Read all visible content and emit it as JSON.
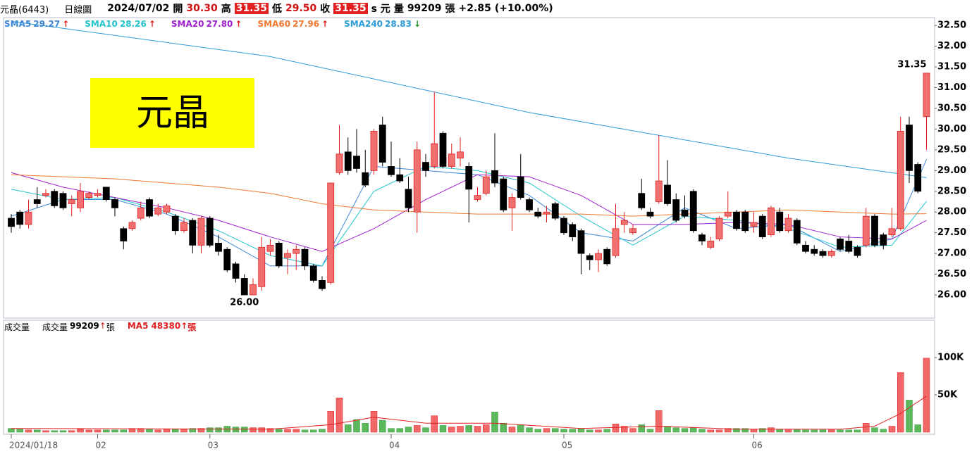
{
  "header": {
    "name": "元晶(6443)",
    "period": "日線圖",
    "date": "2024/07/02",
    "open_label": "開",
    "open": "30.30",
    "high_label": "高",
    "high": "31.35",
    "low_label": "低",
    "low": "29.50",
    "close_label": "收",
    "close": "31.35",
    "unit": "s 元",
    "volume_label": "量",
    "volume": "99209",
    "volume_unit": "張",
    "change": "+2.85",
    "change_pct": "(+10.00%)"
  },
  "banner": "元晶",
  "chart_data": [
    {
      "type": "candlestick",
      "up_color": "#f07070",
      "up_edge": "#e02020",
      "down_color": "#000000",
      "ylim": [
        25.44,
        32.69
      ],
      "yticks": [
        {
          "value": 26,
          "label": "26.00"
        },
        {
          "value": 26.5,
          "label": "26.50"
        },
        {
          "value": 27,
          "label": "27.00"
        },
        {
          "value": 27.5,
          "label": "27.50"
        },
        {
          "value": 28,
          "label": "28.00"
        },
        {
          "value": 28.5,
          "label": "28.50"
        },
        {
          "value": 29,
          "label": "29.00"
        },
        {
          "value": 29.5,
          "label": "29.50"
        },
        {
          "value": 30,
          "label": "30.00"
        },
        {
          "value": 30.5,
          "label": "30.50"
        },
        {
          "value": 31,
          "label": "31.00"
        },
        {
          "value": 31.5,
          "label": "31.50"
        },
        {
          "value": 32,
          "label": "32.00"
        },
        {
          "value": 32.5,
          "label": "32.50"
        }
      ],
      "xticks": [
        {
          "value": 0,
          "label": "2024/01/18"
        },
        {
          "value": 10,
          "label": "02"
        },
        {
          "value": 23,
          "label": "03"
        },
        {
          "value": 44,
          "label": "04"
        },
        {
          "value": 64,
          "label": "05"
        },
        {
          "value": 86,
          "label": "06"
        }
      ],
      "open": [
        27.85,
        28.0,
        27.7,
        28.3,
        28.4,
        28.5,
        28.45,
        28.2,
        28.1,
        28.35,
        28.4,
        28.6,
        28.3,
        27.6,
        27.6,
        27.85,
        28.3,
        27.95,
        28.0,
        27.9,
        27.55,
        27.8,
        27.2,
        27.85,
        27.25,
        27.1,
        26.75,
        26.4,
        26.0,
        26.2,
        27.05,
        27.25,
        26.9,
        27.0,
        27.1,
        26.7,
        26.35,
        26.3,
        28.95,
        29.45,
        29.35,
        28.95,
        29.0,
        30.1,
        29.1,
        28.9,
        28.55,
        28.0,
        29.2,
        29.1,
        29.9,
        29.1,
        29.3,
        29.1,
        28.3,
        28.45,
        29.0,
        28.8,
        28.1,
        28.85,
        28.3,
        28.0,
        27.95,
        28.2,
        27.85,
        27.7,
        27.55,
        26.95,
        26.85,
        27.1,
        26.95,
        27.7,
        27.5,
        28.45,
        28.0,
        28.25,
        28.65,
        28.3,
        28.05,
        28.5,
        27.45,
        27.15,
        27.35,
        27.9,
        28.0,
        28.0,
        27.65,
        27.9,
        27.45,
        28.0,
        27.55,
        27.8,
        27.2,
        27.1,
        27.05,
        26.95,
        27.35,
        27.3,
        27.15,
        27.2,
        27.9,
        27.45,
        27.45,
        27.6,
        30.1,
        29.15,
        30.3
      ],
      "high": [
        27.95,
        28.05,
        28.3,
        28.6,
        28.55,
        28.55,
        28.5,
        28.4,
        28.7,
        28.5,
        28.55,
        28.6,
        28.35,
        27.65,
        27.8,
        28.25,
        28.35,
        28.2,
        28.2,
        27.95,
        27.85,
        27.85,
        27.9,
        27.9,
        27.45,
        27.15,
        26.8,
        26.5,
        26.4,
        27.4,
        27.35,
        27.3,
        27.1,
        27.2,
        27.15,
        26.75,
        26.45,
        28.7,
        30.1,
        29.8,
        30.0,
        29.5,
        30.0,
        30.3,
        29.7,
        29.3,
        28.85,
        29.7,
        29.4,
        30.9,
        29.95,
        29.65,
        29.8,
        29.2,
        28.6,
        29.0,
        29.9,
        28.85,
        28.45,
        29.4,
        28.35,
        28.1,
        28.15,
        28.25,
        27.9,
        27.75,
        27.6,
        27.0,
        27.1,
        27.15,
        28.2,
        28.0,
        27.7,
        28.8,
        28.1,
        29.85,
        29.25,
        28.45,
        28.4,
        28.55,
        27.5,
        27.4,
        27.9,
        28.5,
        28.05,
        28.05,
        28.0,
        27.95,
        28.15,
        28.1,
        27.95,
        27.85,
        27.3,
        27.2,
        27.1,
        27.1,
        27.4,
        27.45,
        27.2,
        28.1,
        27.95,
        27.5,
        28.1,
        30.3,
        30.3,
        29.2,
        31.35
      ],
      "low": [
        27.5,
        27.6,
        27.6,
        28.1,
        28.35,
        28.1,
        28.05,
        27.9,
        28.0,
        28.3,
        28.35,
        28.25,
        27.9,
        27.1,
        27.55,
        27.8,
        27.85,
        27.9,
        27.95,
        27.45,
        27.5,
        27.0,
        27.0,
        27.15,
        26.95,
        26.55,
        26.3,
        26.0,
        26.0,
        26.1,
        26.95,
        26.65,
        26.5,
        26.6,
        26.6,
        26.3,
        26.1,
        26.25,
        28.9,
        28.9,
        28.95,
        28.6,
        28.9,
        29.1,
        28.85,
        28.7,
        28.0,
        27.5,
        28.85,
        29.05,
        29.05,
        29.05,
        29.1,
        27.75,
        28.25,
        28.4,
        28.6,
        28.0,
        27.55,
        28.3,
        28.0,
        27.85,
        27.75,
        27.8,
        27.45,
        27.3,
        26.5,
        26.6,
        26.55,
        26.7,
        26.9,
        27.5,
        27.45,
        28.05,
        27.85,
        28.2,
        28.15,
        27.75,
        27.85,
        27.5,
        27.2,
        27.1,
        27.3,
        27.85,
        27.55,
        27.5,
        27.5,
        27.35,
        27.4,
        27.5,
        27.5,
        27.2,
        27.0,
        26.95,
        26.9,
        26.9,
        27.05,
        27.0,
        26.9,
        27.15,
        27.15,
        27.1,
        27.4,
        27.55,
        28.7,
        28.45,
        29.5
      ],
      "close": [
        27.65,
        27.7,
        28.0,
        28.2,
        28.45,
        28.15,
        28.1,
        28.3,
        28.5,
        28.45,
        28.45,
        28.3,
        28.1,
        27.3,
        27.75,
        28.1,
        27.9,
        28.1,
        28.15,
        27.55,
        27.75,
        27.2,
        27.85,
        27.2,
        27.05,
        26.6,
        26.4,
        26.0,
        26.25,
        27.15,
        27.2,
        26.7,
        27.0,
        27.1,
        26.7,
        26.35,
        26.15,
        28.7,
        29.4,
        29.0,
        29.05,
        28.65,
        29.95,
        29.2,
        28.9,
        28.75,
        28.1,
        29.5,
        29.0,
        29.65,
        29.1,
        29.4,
        29.45,
        28.55,
        28.4,
        28.85,
        28.7,
        28.05,
        28.35,
        28.35,
        28.05,
        27.9,
        28.0,
        27.85,
        27.5,
        27.4,
        27.0,
        26.85,
        27.0,
        26.75,
        27.6,
        27.8,
        27.6,
        28.1,
        27.9,
        28.75,
        28.2,
        27.8,
        27.9,
        27.55,
        27.3,
        27.3,
        27.85,
        28.0,
        27.6,
        27.55,
        27.75,
        27.4,
        28.1,
        27.55,
        27.85,
        27.25,
        27.05,
        27.0,
        26.95,
        27.05,
        27.1,
        27.05,
        26.95,
        27.9,
        27.2,
        27.2,
        27.6,
        29.95,
        29.0,
        28.5,
        31.35
      ],
      "annotations": [
        {
          "label": "31.35",
          "x": 106,
          "y": 31.35
        },
        {
          "label": "26.00",
          "x": 27,
          "y": 26
        }
      ],
      "series": [
        {
          "name": "SMA5",
          "value_label": "29.27",
          "arrow": "↑",
          "arrow_color": "#e02020",
          "color": "#3a86d8",
          "x": [
            0,
            6,
            12,
            18,
            24,
            30,
            36,
            42,
            48,
            54,
            60,
            66,
            72,
            78,
            84,
            90,
            96,
            102,
            106
          ],
          "values": [
            27.9,
            28.3,
            28.3,
            27.95,
            27.4,
            26.7,
            26.7,
            29.1,
            29.0,
            28.9,
            28.4,
            27.5,
            27.3,
            28.1,
            27.6,
            27.7,
            27.05,
            27.35,
            29.27
          ]
        },
        {
          "name": "SMA10",
          "value_label": "28.26",
          "arrow": "↑",
          "arrow_color": "#e02020",
          "color": "#22c4cc",
          "x": [
            0,
            6,
            12,
            18,
            24,
            30,
            36,
            42,
            48,
            54,
            60,
            66,
            72,
            78,
            84,
            90,
            96,
            102,
            106
          ],
          "values": [
            28.55,
            28.3,
            28.35,
            28.0,
            27.55,
            26.95,
            26.7,
            28.5,
            29.1,
            29.0,
            28.7,
            27.9,
            27.2,
            27.9,
            27.8,
            27.6,
            27.15,
            27.2,
            28.26
          ]
        },
        {
          "name": "SMA20",
          "value_label": "27.80",
          "arrow": "↑",
          "arrow_color": "#e02020",
          "color": "#a020d0",
          "x": [
            0,
            6,
            12,
            18,
            24,
            30,
            36,
            42,
            48,
            54,
            60,
            66,
            72,
            78,
            84,
            90,
            96,
            102,
            106
          ],
          "values": [
            28.95,
            28.6,
            28.35,
            28.1,
            27.8,
            27.4,
            27.05,
            27.6,
            28.3,
            28.9,
            28.85,
            28.4,
            27.7,
            27.7,
            27.75,
            27.7,
            27.4,
            27.35,
            27.8
          ]
        },
        {
          "name": "SMA60",
          "value_label": "27.96",
          "arrow": "↑",
          "arrow_color": "#e02020",
          "color": "#f07830",
          "x": [
            0,
            6,
            12,
            18,
            24,
            30,
            36,
            42,
            48,
            54,
            60,
            66,
            72,
            78,
            84,
            90,
            96,
            102,
            106
          ],
          "values": [
            28.9,
            28.85,
            28.8,
            28.7,
            28.6,
            28.45,
            28.2,
            28.05,
            28.0,
            27.95,
            27.95,
            27.95,
            27.9,
            27.95,
            28.0,
            28.05,
            28.0,
            27.95,
            27.96
          ]
        },
        {
          "name": "SMA240",
          "value_label": "28.83",
          "arrow": "↓",
          "arrow_color": "#209020",
          "color": "#2a9ad8",
          "x": [
            0,
            30,
            60,
            75,
            90,
            106
          ],
          "values": [
            32.6,
            31.75,
            30.4,
            29.85,
            29.3,
            28.83
          ]
        }
      ]
    },
    {
      "type": "volume",
      "title": "成交量",
      "up_color": "#f06868",
      "down_color": "#5cb85c",
      "ylim": [
        0,
        150000
      ],
      "yticks": [
        {
          "value": 50000,
          "label": "50K"
        },
        {
          "value": 100000,
          "label": "100K"
        }
      ],
      "legend": {
        "name": "成交量",
        "value_label": "99209",
        "arrow": "↑",
        "unit": "張"
      },
      "values": [
        5000,
        4000,
        3000,
        3000,
        2000,
        2000,
        2000,
        2000,
        4000,
        3000,
        3000,
        3000,
        3000,
        3000,
        5000,
        5000,
        4000,
        3000,
        4000,
        4000,
        4000,
        5000,
        5000,
        6000,
        6000,
        8000,
        7000,
        7000,
        6000,
        6000,
        5000,
        4000,
        4000,
        4000,
        3000,
        3000,
        4000,
        28000,
        46000,
        10000,
        17000,
        12000,
        28000,
        16000,
        5000,
        5000,
        7000,
        9000,
        6000,
        22000,
        9000,
        7000,
        8000,
        9000,
        8000,
        10000,
        27000,
        12000,
        7000,
        10000,
        6000,
        4000,
        5000,
        5000,
        4000,
        4000,
        5000,
        3000,
        3000,
        4000,
        11000,
        8000,
        5000,
        10000,
        4000,
        29000,
        8000,
        6000,
        5000,
        6000,
        4000,
        3000,
        3000,
        5000,
        5000,
        5000,
        4000,
        5000,
        6000,
        4000,
        4000,
        4000,
        3000,
        3000,
        3000,
        3000,
        3000,
        3000,
        3000,
        12000,
        6000,
        4000,
        8000,
        80000,
        43000,
        10000,
        99209
      ],
      "series": [
        {
          "name": "MA5",
          "value_label": "48380",
          "arrow": "↑",
          "unit": "張",
          "color": "#e02020",
          "x": [
            0,
            30,
            37,
            42,
            48,
            56,
            66,
            75,
            84,
            96,
            100,
            103,
            106
          ],
          "values": [
            5000,
            4000,
            10000,
            20000,
            12000,
            12000,
            5000,
            8000,
            4000,
            4000,
            8000,
            25000,
            48380
          ]
        }
      ]
    }
  ]
}
